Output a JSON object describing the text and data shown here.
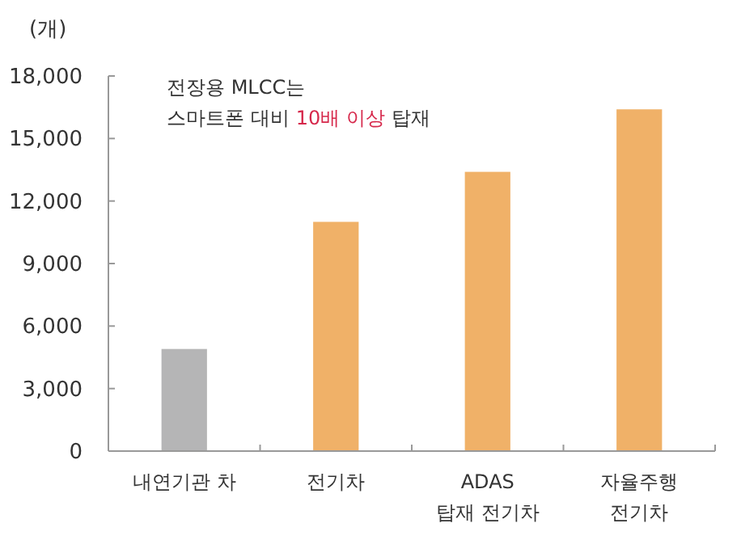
{
  "chart_data": {
    "type": "bar",
    "ylabel": "(개)",
    "categories": [
      "내연기관 차",
      "전기차",
      "ADAS\n탑재 전기차",
      "자율주행\n전기차"
    ],
    "values": [
      4900,
      11000,
      13400,
      16400
    ],
    "colors": [
      "#b5b5b6",
      "#f0b168",
      "#f0b168",
      "#f0b168"
    ],
    "ylim": [
      0,
      18000
    ],
    "yticks": [
      0,
      {
        "value": 3000,
        "label": "3,000"
      },
      {
        "value": 6000,
        "label": "6,000"
      },
      {
        "value": 9000,
        "label": "9,000"
      },
      {
        "value": 12000,
        "label": "12,000"
      },
      {
        "value": 15000,
        "label": "15,000"
      },
      {
        "value": 18000,
        "label": "18,000"
      }
    ],
    "grid": false,
    "annotations": [
      "전장용 MLCC는",
      "스마트폰 대비",
      "10배 이상",
      "탑재"
    ]
  }
}
